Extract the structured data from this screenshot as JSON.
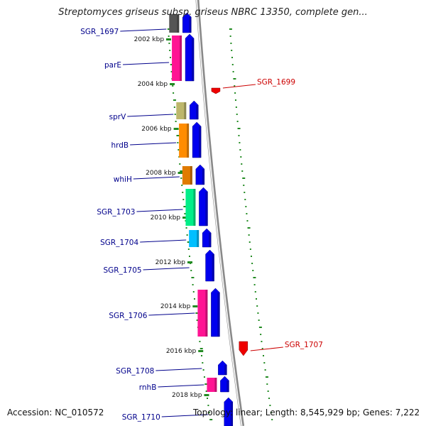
{
  "map": {
    "title": "Streptomyces griseus subsp. griseus NBRC 13350, complete gen...",
    "accession": "Accession: NC_010572",
    "topology": "Topology: linear; Length: 8,545,929 bp; Genes: 7,222"
  },
  "colors": {
    "label_text": "#00008b",
    "forward_gene": "#0000ee",
    "reverse_gene_red": "#ee0000",
    "backbone": "#999999",
    "tick": "#228b22"
  },
  "ticks": [
    {
      "label": "2002 kbp"
    },
    {
      "label": "2004 kbp"
    },
    {
      "label": "2006 kbp"
    },
    {
      "label": "2008 kbp"
    },
    {
      "label": "2010 kbp"
    },
    {
      "label": "2012 kbp"
    },
    {
      "label": "2014 kbp"
    },
    {
      "label": "2016 kbp"
    },
    {
      "label": "2018 kbp"
    }
  ],
  "genes": [
    {
      "label": "SGR_1697",
      "color": "#0000ee",
      "cog_color": "#555555"
    },
    {
      "label": "parE",
      "color": "#0000ee",
      "cog_color": "#ff1493"
    },
    {
      "label": "SGR_1699",
      "color": "#ee0000",
      "cog_color": ""
    },
    {
      "label": "sprV",
      "color": "#0000ee",
      "cog_color": "#bdb76b"
    },
    {
      "label": "hrdB",
      "color": "#0000ee",
      "cog_color": "#ff8c00"
    },
    {
      "label": "whiH",
      "color": "#0000ee",
      "cog_color": "#e07b00"
    },
    {
      "label": "SGR_1703",
      "color": "#0000ee",
      "cog_color": "#00ee88"
    },
    {
      "label": "SGR_1704",
      "color": "#0000ee",
      "cog_color": "#00bfff"
    },
    {
      "label": "SGR_1705",
      "color": "#0000ee",
      "cog_color": ""
    },
    {
      "label": "SGR_1706",
      "color": "#0000ee",
      "cog_color": "#ff1493"
    },
    {
      "label": "SGR_1707",
      "color": "#ee0000",
      "cog_color": ""
    },
    {
      "label": "SGR_1708",
      "color": "#0000ee",
      "cog_color": ""
    },
    {
      "label": "rnhB",
      "color": "#0000ee",
      "cog_color": "#ff1493"
    },
    {
      "label": "SGR_1710",
      "color": "#0000ee",
      "cog_color": ""
    }
  ]
}
